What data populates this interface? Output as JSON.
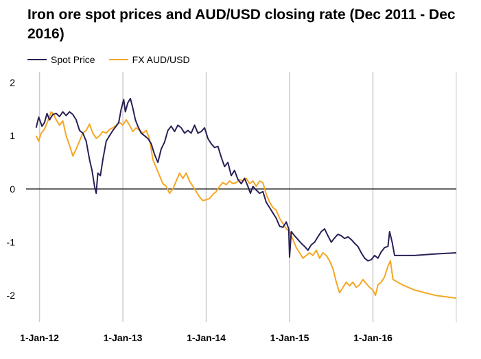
{
  "chart_data": {
    "type": "line",
    "title": "Iron ore spot prices and AUD/USD closing rate (Dec 2011 - Dec 2016)",
    "xlabel": "",
    "ylabel": "",
    "ylim": [
      -2.5,
      2.2
    ],
    "xlim": [
      2011.95,
      2017.0
    ],
    "y_ticks": [
      "2",
      "1",
      "0",
      "-1",
      "-2"
    ],
    "y_tick_values": [
      2,
      1,
      0,
      -1,
      -2
    ],
    "x_ticks": [
      "1-Jan-12",
      "1-Jan-13",
      "1-Jan-14",
      "1-Jan-15",
      "1-Jan-16"
    ],
    "x_tick_values": [
      2012,
      2013,
      2014,
      2015,
      2016
    ],
    "grid": "vertical",
    "legend_position": "top-left",
    "series": [
      {
        "name": "Spot Price",
        "color": "#2a1f56",
        "points": [
          [
            2011.96,
            1.15
          ],
          [
            2011.99,
            1.35
          ],
          [
            2012.03,
            1.18
          ],
          [
            2012.06,
            1.25
          ],
          [
            2012.09,
            1.42
          ],
          [
            2012.12,
            1.3
          ],
          [
            2012.16,
            1.4
          ],
          [
            2012.2,
            1.42
          ],
          [
            2012.24,
            1.36
          ],
          [
            2012.28,
            1.45
          ],
          [
            2012.32,
            1.38
          ],
          [
            2012.36,
            1.45
          ],
          [
            2012.4,
            1.4
          ],
          [
            2012.44,
            1.3
          ],
          [
            2012.48,
            1.1
          ],
          [
            2012.52,
            1.05
          ],
          [
            2012.56,
            0.9
          ],
          [
            2012.6,
            0.55
          ],
          [
            2012.63,
            0.35
          ],
          [
            2012.66,
            0.05
          ],
          [
            2012.68,
            -0.08
          ],
          [
            2012.7,
            0.3
          ],
          [
            2012.73,
            0.25
          ],
          [
            2012.76,
            0.55
          ],
          [
            2012.8,
            0.9
          ],
          [
            2012.84,
            1.0
          ],
          [
            2012.88,
            1.1
          ],
          [
            2012.92,
            1.18
          ],
          [
            2012.95,
            1.25
          ],
          [
            2012.98,
            1.5
          ],
          [
            2013.01,
            1.68
          ],
          [
            2013.03,
            1.45
          ],
          [
            2013.06,
            1.62
          ],
          [
            2013.09,
            1.7
          ],
          [
            2013.12,
            1.52
          ],
          [
            2013.15,
            1.3
          ],
          [
            2013.18,
            1.18
          ],
          [
            2013.22,
            1.05
          ],
          [
            2013.26,
            1.0
          ],
          [
            2013.3,
            0.95
          ],
          [
            2013.34,
            0.85
          ],
          [
            2013.38,
            0.65
          ],
          [
            2013.42,
            0.5
          ],
          [
            2013.46,
            0.75
          ],
          [
            2013.5,
            0.88
          ],
          [
            2013.54,
            1.1
          ],
          [
            2013.58,
            1.18
          ],
          [
            2013.62,
            1.08
          ],
          [
            2013.66,
            1.2
          ],
          [
            2013.7,
            1.15
          ],
          [
            2013.74,
            1.05
          ],
          [
            2013.78,
            1.1
          ],
          [
            2013.82,
            1.05
          ],
          [
            2013.86,
            1.2
          ],
          [
            2013.9,
            1.05
          ],
          [
            2013.94,
            1.08
          ],
          [
            2013.98,
            1.15
          ],
          [
            2014.02,
            0.95
          ],
          [
            2014.06,
            0.85
          ],
          [
            2014.1,
            0.78
          ],
          [
            2014.14,
            0.8
          ],
          [
            2014.18,
            0.6
          ],
          [
            2014.22,
            0.42
          ],
          [
            2014.26,
            0.5
          ],
          [
            2014.3,
            0.25
          ],
          [
            2014.34,
            0.35
          ],
          [
            2014.38,
            0.18
          ],
          [
            2014.42,
            0.1
          ],
          [
            2014.46,
            0.2
          ],
          [
            2014.5,
            0.05
          ],
          [
            2014.53,
            -0.08
          ],
          [
            2014.56,
            0.05
          ],
          [
            2014.6,
            -0.02
          ],
          [
            2014.64,
            -0.08
          ],
          [
            2014.68,
            -0.05
          ],
          [
            2014.72,
            -0.25
          ],
          [
            2014.76,
            -0.35
          ],
          [
            2014.8,
            -0.45
          ],
          [
            2014.84,
            -0.55
          ],
          [
            2014.88,
            -0.7
          ],
          [
            2014.92,
            -0.72
          ],
          [
            2014.96,
            -0.62
          ],
          [
            2014.99,
            -0.75
          ],
          [
            2015.0,
            -1.28
          ],
          [
            2015.02,
            -0.8
          ],
          [
            2015.06,
            -0.88
          ],
          [
            2015.1,
            -0.95
          ],
          [
            2015.14,
            -1.02
          ],
          [
            2015.18,
            -1.08
          ],
          [
            2015.22,
            -1.15
          ],
          [
            2015.26,
            -1.05
          ],
          [
            2015.3,
            -1.0
          ],
          [
            2015.34,
            -0.9
          ],
          [
            2015.38,
            -0.8
          ],
          [
            2015.42,
            -0.75
          ],
          [
            2015.46,
            -0.88
          ],
          [
            2015.5,
            -1.0
          ],
          [
            2015.54,
            -0.92
          ],
          [
            2015.58,
            -0.85
          ],
          [
            2015.62,
            -0.88
          ],
          [
            2015.66,
            -0.93
          ],
          [
            2015.7,
            -0.9
          ],
          [
            2015.74,
            -0.95
          ],
          [
            2015.78,
            -1.02
          ],
          [
            2015.82,
            -1.08
          ],
          [
            2015.86,
            -1.2
          ],
          [
            2015.9,
            -1.3
          ],
          [
            2015.94,
            -1.35
          ],
          [
            2015.98,
            -1.33
          ],
          [
            2016.02,
            -1.25
          ],
          [
            2016.06,
            -1.3
          ],
          [
            2016.1,
            -1.18
          ],
          [
            2016.14,
            -1.1
          ],
          [
            2016.18,
            -1.08
          ],
          [
            2016.2,
            -0.8
          ],
          [
            2016.23,
            -1.0
          ],
          [
            2016.26,
            -1.25
          ],
          [
            2016.5,
            -1.25
          ],
          [
            2016.75,
            -1.22
          ],
          [
            2017.0,
            -1.2
          ]
        ]
      },
      {
        "name": "FX AUD/USD",
        "color": "#f5a623",
        "points": [
          [
            2011.96,
            1.0
          ],
          [
            2011.99,
            0.9
          ],
          [
            2012.02,
            1.05
          ],
          [
            2012.05,
            1.1
          ],
          [
            2012.08,
            1.2
          ],
          [
            2012.11,
            1.32
          ],
          [
            2012.14,
            1.45
          ],
          [
            2012.17,
            1.4
          ],
          [
            2012.2,
            1.3
          ],
          [
            2012.24,
            1.2
          ],
          [
            2012.28,
            1.28
          ],
          [
            2012.32,
            1.0
          ],
          [
            2012.36,
            0.82
          ],
          [
            2012.4,
            0.62
          ],
          [
            2012.44,
            0.75
          ],
          [
            2012.48,
            0.9
          ],
          [
            2012.52,
            1.05
          ],
          [
            2012.56,
            1.1
          ],
          [
            2012.6,
            1.22
          ],
          [
            2012.64,
            1.05
          ],
          [
            2012.68,
            0.95
          ],
          [
            2012.72,
            1.0
          ],
          [
            2012.76,
            1.08
          ],
          [
            2012.8,
            1.05
          ],
          [
            2012.84,
            1.12
          ],
          [
            2012.88,
            1.15
          ],
          [
            2012.92,
            1.2
          ],
          [
            2012.96,
            1.25
          ],
          [
            2013.0,
            1.2
          ],
          [
            2013.04,
            1.3
          ],
          [
            2013.08,
            1.2
          ],
          [
            2013.12,
            1.08
          ],
          [
            2013.16,
            1.15
          ],
          [
            2013.2,
            1.1
          ],
          [
            2013.24,
            1.05
          ],
          [
            2013.28,
            1.1
          ],
          [
            2013.32,
            0.95
          ],
          [
            2013.36,
            0.55
          ],
          [
            2013.4,
            0.4
          ],
          [
            2013.44,
            0.25
          ],
          [
            2013.48,
            0.1
          ],
          [
            2013.52,
            0.05
          ],
          [
            2013.56,
            -0.08
          ],
          [
            2013.6,
            0.0
          ],
          [
            2013.64,
            0.15
          ],
          [
            2013.68,
            0.3
          ],
          [
            2013.72,
            0.2
          ],
          [
            2013.76,
            0.3
          ],
          [
            2013.8,
            0.15
          ],
          [
            2013.84,
            0.05
          ],
          [
            2013.88,
            -0.05
          ],
          [
            2013.92,
            -0.15
          ],
          [
            2013.96,
            -0.22
          ],
          [
            2014.0,
            -0.2
          ],
          [
            2014.04,
            -0.18
          ],
          [
            2014.08,
            -0.1
          ],
          [
            2014.12,
            -0.05
          ],
          [
            2014.16,
            0.05
          ],
          [
            2014.2,
            0.12
          ],
          [
            2014.24,
            0.08
          ],
          [
            2014.28,
            0.15
          ],
          [
            2014.32,
            0.1
          ],
          [
            2014.36,
            0.12
          ],
          [
            2014.4,
            0.18
          ],
          [
            2014.44,
            0.15
          ],
          [
            2014.48,
            0.2
          ],
          [
            2014.52,
            0.1
          ],
          [
            2014.56,
            0.15
          ],
          [
            2014.6,
            0.05
          ],
          [
            2014.64,
            0.15
          ],
          [
            2014.68,
            0.12
          ],
          [
            2014.72,
            -0.1
          ],
          [
            2014.76,
            -0.25
          ],
          [
            2014.8,
            -0.35
          ],
          [
            2014.84,
            -0.4
          ],
          [
            2014.88,
            -0.55
          ],
          [
            2014.92,
            -0.65
          ],
          [
            2014.96,
            -0.75
          ],
          [
            2015.0,
            -0.8
          ],
          [
            2015.04,
            -0.95
          ],
          [
            2015.08,
            -1.1
          ],
          [
            2015.12,
            -1.2
          ],
          [
            2015.16,
            -1.3
          ],
          [
            2015.2,
            -1.25
          ],
          [
            2015.24,
            -1.2
          ],
          [
            2015.28,
            -1.25
          ],
          [
            2015.32,
            -1.15
          ],
          [
            2015.36,
            -1.3
          ],
          [
            2015.4,
            -1.2
          ],
          [
            2015.44,
            -1.25
          ],
          [
            2015.48,
            -1.35
          ],
          [
            2015.52,
            -1.5
          ],
          [
            2015.56,
            -1.75
          ],
          [
            2015.6,
            -1.95
          ],
          [
            2015.64,
            -1.85
          ],
          [
            2015.68,
            -1.75
          ],
          [
            2015.72,
            -1.82
          ],
          [
            2015.76,
            -1.75
          ],
          [
            2015.8,
            -1.85
          ],
          [
            2015.84,
            -1.8
          ],
          [
            2015.88,
            -1.7
          ],
          [
            2015.92,
            -1.78
          ],
          [
            2015.96,
            -1.85
          ],
          [
            2016.0,
            -1.9
          ],
          [
            2016.03,
            -2.0
          ],
          [
            2016.06,
            -1.8
          ],
          [
            2016.1,
            -1.75
          ],
          [
            2016.14,
            -1.65
          ],
          [
            2016.18,
            -1.45
          ],
          [
            2016.21,
            -1.35
          ],
          [
            2016.24,
            -1.7
          ],
          [
            2016.35,
            -1.8
          ],
          [
            2016.5,
            -1.9
          ],
          [
            2016.75,
            -2.0
          ],
          [
            2017.0,
            -2.05
          ]
        ]
      }
    ]
  }
}
